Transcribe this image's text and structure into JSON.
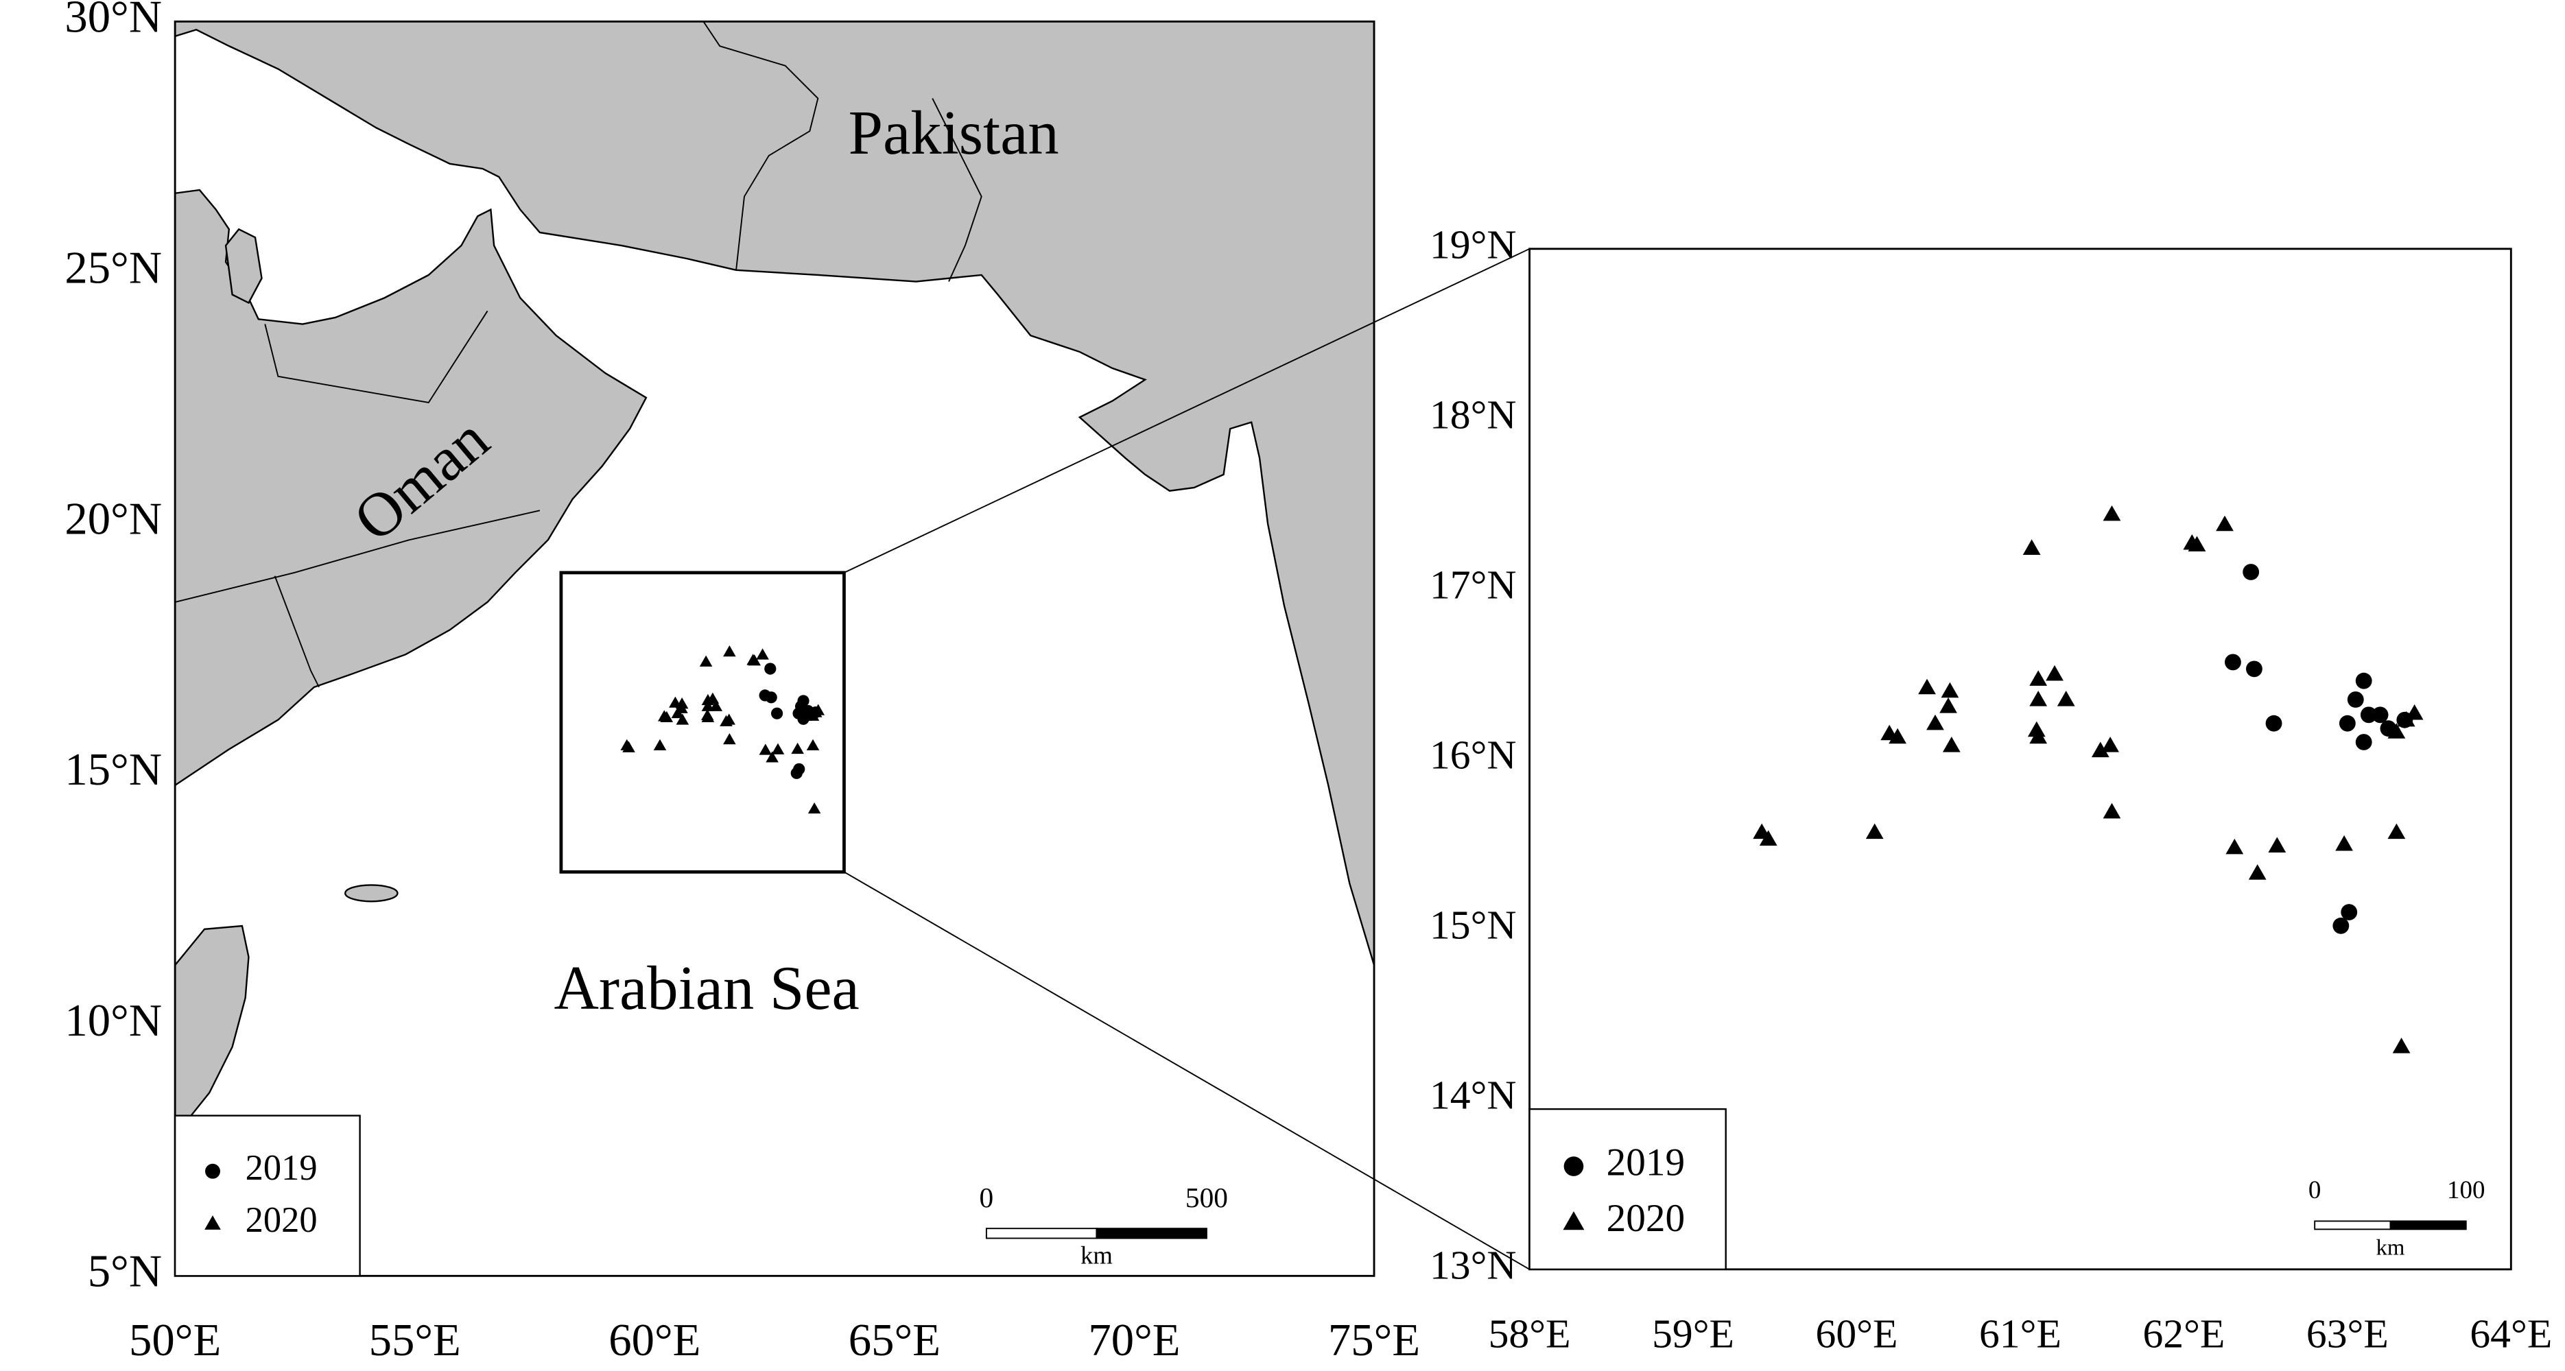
{
  "chart_data": {
    "type": "scatter",
    "xlim": [
      50,
      75
    ],
    "ylim": [
      5,
      30
    ],
    "xticks": [
      {
        "value": 50,
        "label": "50°E"
      },
      {
        "value": 55,
        "label": "55°E"
      },
      {
        "value": 60,
        "label": "60°E"
      },
      {
        "value": 65,
        "label": "65°E"
      },
      {
        "value": 70,
        "label": "70°E"
      },
      {
        "value": 75,
        "label": "75°E"
      }
    ],
    "yticks": [
      {
        "value": 5,
        "label": "5°N"
      },
      {
        "value": 10,
        "label": "10°N"
      },
      {
        "value": 15,
        "label": "15°N"
      },
      {
        "value": 20,
        "label": "20°N"
      },
      {
        "value": 25,
        "label": "25°N"
      },
      {
        "value": 30,
        "label": "30°N"
      }
    ],
    "annotations": [
      "Pakistan",
      "Oman",
      "Arabian Sea"
    ],
    "scalebar": {
      "ticks": [
        0,
        500
      ],
      "unit": "km"
    },
    "series": [
      {
        "name": "2019",
        "marker": "circle",
        "color": "#000000",
        "x": [
          62.41,
          62.3,
          62.43,
          62.55,
          63.1,
          63.05,
          63.13,
          63.0,
          63.1,
          63.25,
          63.2,
          63.35,
          63.01,
          62.96
        ],
        "y": [
          17.1,
          16.57,
          16.53,
          16.21,
          16.46,
          16.35,
          16.26,
          16.21,
          16.1,
          16.18,
          16.26,
          16.23,
          15.1,
          15.02
        ]
      },
      {
        "name": "2020",
        "marker": "triangle",
        "color": "#000000",
        "x": [
          59.42,
          59.46,
          60.11,
          60.2,
          60.25,
          60.43,
          60.57,
          60.56,
          60.48,
          60.58,
          61.07,
          61.11,
          61.21,
          61.11,
          61.28,
          61.1,
          61.11,
          61.56,
          61.49,
          61.55,
          61.56,
          62.05,
          62.08,
          62.25,
          62.31,
          62.45,
          62.57,
          62.98,
          63.3,
          63.3,
          63.41,
          63.36,
          63.33
        ],
        "y": [
          15.57,
          15.53,
          15.57,
          16.15,
          16.13,
          16.42,
          16.4,
          16.31,
          16.21,
          16.08,
          17.24,
          16.47,
          16.5,
          16.35,
          16.35,
          16.17,
          16.13,
          17.44,
          16.05,
          16.08,
          15.69,
          17.27,
          17.26,
          17.38,
          15.48,
          15.33,
          15.49,
          15.5,
          15.57,
          16.16,
          16.27,
          16.23,
          14.31
        ]
      }
    ],
    "inset": {
      "xlim": [
        58,
        64
      ],
      "ylim": [
        13,
        19
      ],
      "xticks": [
        {
          "value": 58,
          "label": "58°E"
        },
        {
          "value": 59,
          "label": "59°E"
        },
        {
          "value": 60,
          "label": "60°E"
        },
        {
          "value": 61,
          "label": "61°E"
        },
        {
          "value": 62,
          "label": "62°E"
        },
        {
          "value": 63,
          "label": "63°E"
        },
        {
          "value": 64,
          "label": "64°E"
        }
      ],
      "yticks": [
        {
          "value": 13,
          "label": "13°N"
        },
        {
          "value": 14,
          "label": "14°N"
        },
        {
          "value": 15,
          "label": "15°N"
        },
        {
          "value": 16,
          "label": "16°N"
        },
        {
          "value": 17,
          "label": "17°N"
        },
        {
          "value": 18,
          "label": "18°N"
        },
        {
          "value": 19,
          "label": "19°N"
        }
      ],
      "scalebar": {
        "ticks": [
          0,
          100
        ],
        "unit": "km"
      }
    }
  }
}
